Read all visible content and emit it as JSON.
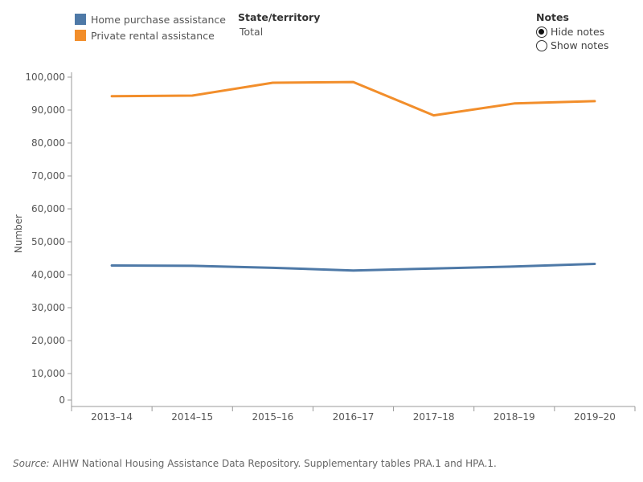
{
  "legend": {
    "items": [
      {
        "label": "Home purchase assistance",
        "color": "#4e79a7"
      },
      {
        "label": "Private rental assistance",
        "color": "#f28e2b"
      }
    ]
  },
  "filter": {
    "title": "State/territory",
    "value": "Total"
  },
  "notes": {
    "title": "Notes",
    "options": [
      {
        "label": "Hide notes",
        "checked": true
      },
      {
        "label": "Show notes",
        "checked": false
      }
    ]
  },
  "source": {
    "prefix": "Source:",
    "text": " AIHW National Housing Assistance Data Repository. Supplementary tables PRA.1 and HPA.1."
  },
  "chart_data": {
    "type": "line",
    "categories": [
      "2013–14",
      "2014–15",
      "2015–16",
      "2016–17",
      "2017–18",
      "2018–19",
      "2019–20"
    ],
    "series": [
      {
        "name": "Home purchase assistance",
        "color": "#4e79a7",
        "values": [
          42800,
          42700,
          42100,
          41300,
          41900,
          42500,
          43300
        ]
      },
      {
        "name": "Private rental assistance",
        "color": "#f28e2b",
        "values": [
          94200,
          94400,
          98300,
          98500,
          88400,
          92000,
          92700
        ]
      }
    ],
    "ylabel": "Number",
    "ylim": [
      0,
      100000
    ],
    "yticks": [
      "0",
      "10,000",
      "20,000",
      "30,000",
      "40,000",
      "50,000",
      "60,000",
      "70,000",
      "80,000",
      "90,000",
      "100,000"
    ],
    "grid": false,
    "legend": "top-left"
  }
}
